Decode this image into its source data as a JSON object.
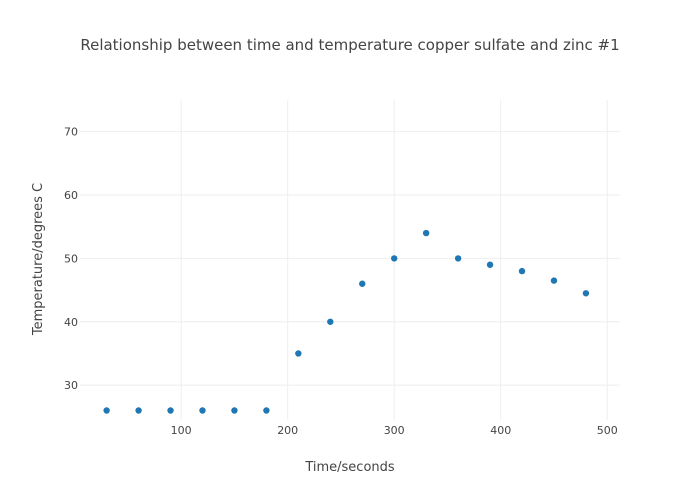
{
  "chart_data": {
    "type": "scatter",
    "title": "Relationship between time and temperature copper sulfate and zinc #1",
    "xlabel": "Time/seconds",
    "ylabel": "Temperature/degrees C",
    "xlim": [
      5,
      512
    ],
    "ylim": [
      24.5,
      75
    ],
    "xticks": [
      100,
      200,
      300,
      400,
      500
    ],
    "yticks": [
      30,
      40,
      50,
      60,
      70
    ],
    "grid": true,
    "marker_color": "#1f77b4",
    "series": [
      {
        "x": [
          30,
          60,
          90,
          120,
          150,
          180,
          210,
          240,
          270,
          300,
          330,
          360,
          390,
          420,
          450,
          480
        ],
        "y": [
          26,
          26,
          26,
          26,
          26,
          26,
          35,
          40,
          46,
          50,
          54,
          50,
          49,
          48,
          46.5,
          44.5
        ]
      }
    ]
  }
}
